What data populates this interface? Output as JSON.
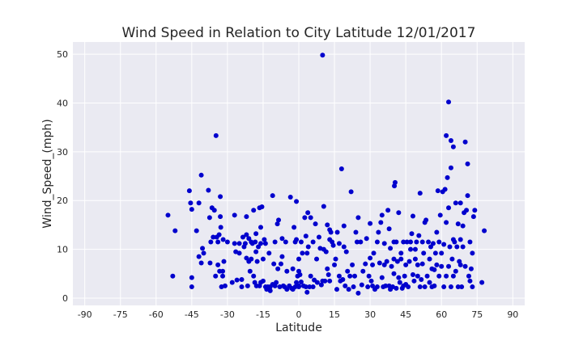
{
  "chart_data": {
    "type": "scatter",
    "title": "Wind Speed in Relation to City Latitude 12/01/2017",
    "xlabel": "Latitude",
    "ylabel": "Wind_Speed_(mph)",
    "xlim": [
      -95,
      95
    ],
    "ylim": [
      -1.5,
      52.5
    ],
    "xticks": [
      -90,
      -75,
      -60,
      -45,
      -30,
      -15,
      0,
      15,
      30,
      45,
      60,
      75,
      90
    ],
    "yticks": [
      0,
      10,
      20,
      30,
      40,
      50
    ],
    "grid": true,
    "point_color": "#0000cd",
    "plot_background": "#eaeaf2",
    "points": [
      [
        -55,
        17
      ],
      [
        -53,
        4.5
      ],
      [
        -52,
        13.8
      ],
      [
        -46,
        22
      ],
      [
        -45.5,
        19.5
      ],
      [
        -45,
        18.2
      ],
      [
        -45,
        4.2
      ],
      [
        -45,
        2.3
      ],
      [
        -43,
        13.8
      ],
      [
        -42,
        19.5
      ],
      [
        -42,
        8.5
      ],
      [
        -41,
        25.2
      ],
      [
        -41,
        7.2
      ],
      [
        -40.5,
        10.2
      ],
      [
        -40,
        9.2
      ],
      [
        -38,
        22.1
      ],
      [
        -37.5,
        16.5
      ],
      [
        -37.3,
        7.2
      ],
      [
        -37,
        11.5
      ],
      [
        -36.5,
        18.5
      ],
      [
        -36,
        12.5
      ],
      [
        -35.5,
        18
      ],
      [
        -35,
        4.5
      ],
      [
        -34.8,
        33.3
      ],
      [
        -34.5,
        12.5
      ],
      [
        -34,
        11.5
      ],
      [
        -34,
        6.8
      ],
      [
        -33.5,
        13
      ],
      [
        -33.3,
        5.5
      ],
      [
        -33,
        20.8
      ],
      [
        -33,
        16.7
      ],
      [
        -32.8,
        14.5
      ],
      [
        -32.5,
        2.3
      ],
      [
        -32,
        5.5
      ],
      [
        -32,
        4.5
      ],
      [
        -31.8,
        12
      ],
      [
        -31.5,
        7.5
      ],
      [
        -31,
        2.5
      ],
      [
        -30,
        11.5
      ],
      [
        -28,
        3.2
      ],
      [
        -27,
        17
      ],
      [
        -27,
        11.2
      ],
      [
        -26.5,
        9.5
      ],
      [
        -26,
        3.7
      ],
      [
        -25,
        11.2
      ],
      [
        -25,
        9.2
      ],
      [
        -24,
        2.3
      ],
      [
        -24,
        3.8
      ],
      [
        -23.5,
        12.5
      ],
      [
        -23,
        10.5
      ],
      [
        -22.5,
        11.2
      ],
      [
        -22,
        16.7
      ],
      [
        -22,
        13
      ],
      [
        -22,
        8.2
      ],
      [
        -21.5,
        2.5
      ],
      [
        -21,
        7.5
      ],
      [
        -21,
        12.2
      ],
      [
        -20.5,
        5.5
      ],
      [
        -20,
        8
      ],
      [
        -20,
        11.5
      ],
      [
        -19.5,
        11.2
      ],
      [
        -19,
        4.5
      ],
      [
        -19,
        18
      ],
      [
        -18.5,
        3.2
      ],
      [
        -18.3,
        11.5
      ],
      [
        -18,
        13.2
      ],
      [
        -18,
        9.5
      ],
      [
        -17.8,
        2.5
      ],
      [
        -17.5,
        7.5
      ],
      [
        -17,
        10.5
      ],
      [
        -16.5,
        18.5
      ],
      [
        -16.5,
        2.5
      ],
      [
        -16,
        11.2
      ],
      [
        -16,
        3.2
      ],
      [
        -16,
        14.5
      ],
      [
        -15.5,
        18.7
      ],
      [
        -15,
        8
      ],
      [
        -15,
        3.5
      ],
      [
        -14.5,
        12
      ],
      [
        -14,
        11.2
      ],
      [
        -14,
        2.3
      ],
      [
        -13.5,
        1.8
      ],
      [
        -13,
        2.3
      ],
      [
        -12.5,
        9.2
      ],
      [
        -12,
        1.5
      ],
      [
        -12,
        2.3
      ],
      [
        -11,
        21
      ],
      [
        -11,
        2.8
      ],
      [
        -10.5,
        7
      ],
      [
        -10,
        11.5
      ],
      [
        -10,
        2.5
      ],
      [
        -9.5,
        3.2
      ],
      [
        -9,
        15.2
      ],
      [
        -8.8,
        6
      ],
      [
        -8.5,
        16
      ],
      [
        -8,
        2.3
      ],
      [
        -7.5,
        7
      ],
      [
        -7,
        8.5
      ],
      [
        -7,
        12.2
      ],
      [
        -6.5,
        2.5
      ],
      [
        -6,
        2.3
      ],
      [
        -5.5,
        11.5
      ],
      [
        -5,
        1.8
      ],
      [
        -5,
        5.5
      ],
      [
        -4,
        2.5
      ],
      [
        -3.5,
        20.7
      ],
      [
        -3,
        2
      ],
      [
        -2.5,
        6
      ],
      [
        -2.5,
        1.8
      ],
      [
        -2,
        14.5
      ],
      [
        -1.5,
        11.5
      ],
      [
        -1.5,
        2.3
      ],
      [
        -1,
        3.2
      ],
      [
        -1,
        19.8
      ],
      [
        -1,
        12
      ],
      [
        -0.5,
        4.5
      ],
      [
        0,
        8
      ],
      [
        0,
        2.5
      ],
      [
        0,
        2.3
      ],
      [
        0,
        5.5
      ],
      [
        0.5,
        4.8
      ],
      [
        1,
        3.3
      ],
      [
        1,
        11.5
      ],
      [
        1.5,
        9.2
      ],
      [
        2,
        2.5
      ],
      [
        2.5,
        16.5
      ],
      [
        3,
        12.7
      ],
      [
        3,
        2.3
      ],
      [
        3.5,
        9.2
      ],
      [
        3.5,
        1.2
      ],
      [
        3.8,
        17.5
      ],
      [
        4,
        10.5
      ],
      [
        4.5,
        2.3
      ],
      [
        5,
        16.5
      ],
      [
        5,
        4.5
      ],
      [
        6,
        11.5
      ],
      [
        6,
        2.3
      ],
      [
        6.5,
        3.7
      ],
      [
        7,
        15.2
      ],
      [
        7.5,
        8
      ],
      [
        7.8,
        3.2
      ],
      [
        8.5,
        12.5
      ],
      [
        9,
        10.2
      ],
      [
        9.5,
        2.7
      ],
      [
        10,
        49.8
      ],
      [
        10,
        3.5
      ],
      [
        10.5,
        18.8
      ],
      [
        10.5,
        10
      ],
      [
        11,
        3.5
      ],
      [
        11.5,
        9.5
      ],
      [
        12,
        15
      ],
      [
        12,
        6
      ],
      [
        12.5,
        4.8
      ],
      [
        13,
        14
      ],
      [
        13,
        12
      ],
      [
        13,
        3.5
      ],
      [
        13.5,
        13.5
      ],
      [
        14,
        11.5
      ],
      [
        14.5,
        10.8
      ],
      [
        15,
        6.8
      ],
      [
        15.5,
        8
      ],
      [
        16,
        1.8
      ],
      [
        16.2,
        13.5
      ],
      [
        17,
        4.5
      ],
      [
        17,
        11.2
      ],
      [
        17.5,
        3.5
      ],
      [
        18,
        26.5
      ],
      [
        18.5,
        3.8
      ],
      [
        19,
        10.5
      ],
      [
        19,
        14.8
      ],
      [
        19.5,
        2.5
      ],
      [
        20,
        9.5
      ],
      [
        20.5,
        5.5
      ],
      [
        21,
        1.8
      ],
      [
        21.5,
        4.5
      ],
      [
        22,
        21.8
      ],
      [
        22.5,
        6.8
      ],
      [
        23,
        2.3
      ],
      [
        23.5,
        4.5
      ],
      [
        24,
        13.5
      ],
      [
        24.5,
        11.5
      ],
      [
        25,
        16.5
      ],
      [
        25,
        1
      ],
      [
        26,
        11.5
      ],
      [
        26.5,
        2.7
      ],
      [
        27,
        5.5
      ],
      [
        28,
        7
      ],
      [
        28.5,
        12.2
      ],
      [
        29,
        2.3
      ],
      [
        29.5,
        4.5
      ],
      [
        30,
        15.3
      ],
      [
        30,
        8.2
      ],
      [
        30.5,
        3.5
      ],
      [
        31,
        6.8
      ],
      [
        31,
        2.5
      ],
      [
        31.5,
        9.2
      ],
      [
        32,
        1.8
      ],
      [
        33,
        2.3
      ],
      [
        33,
        11.5
      ],
      [
        33.5,
        13.5
      ],
      [
        34,
        7.2
      ],
      [
        34.5,
        15.5
      ],
      [
        35,
        4.2
      ],
      [
        35,
        17
      ],
      [
        35.5,
        2.3
      ],
      [
        36,
        6.8
      ],
      [
        36,
        11.2
      ],
      [
        36.5,
        2.5
      ],
      [
        37,
        7.5
      ],
      [
        37.5,
        18
      ],
      [
        38,
        14.2
      ],
      [
        38,
        2.5
      ],
      [
        38.5,
        10.2
      ],
      [
        38.5,
        1.8
      ],
      [
        39,
        6.5
      ],
      [
        39.5,
        2.3
      ],
      [
        40,
        11.5
      ],
      [
        40,
        8
      ],
      [
        40,
        5
      ],
      [
        40.2,
        23
      ],
      [
        40.5,
        23.7
      ],
      [
        41,
        11.5
      ],
      [
        41,
        2
      ],
      [
        41.5,
        7.5
      ],
      [
        42,
        4.2
      ],
      [
        42,
        17.5
      ],
      [
        42.5,
        3.2
      ],
      [
        43,
        8
      ],
      [
        43,
        9.2
      ],
      [
        43.5,
        2
      ],
      [
        44,
        11.5
      ],
      [
        44,
        2.5
      ],
      [
        44.5,
        4.5
      ],
      [
        45,
        6.8
      ],
      [
        45,
        2.8
      ],
      [
        45.5,
        11.5
      ],
      [
        46,
        2.3
      ],
      [
        46.5,
        7.5
      ],
      [
        47,
        11.5
      ],
      [
        47,
        10
      ],
      [
        47.5,
        13.2
      ],
      [
        48,
        4.8
      ],
      [
        48,
        16.8
      ],
      [
        48.5,
        3.5
      ],
      [
        49,
        8
      ],
      [
        49,
        10
      ],
      [
        49.5,
        11.5
      ],
      [
        50,
        6.8
      ],
      [
        50,
        4.5
      ],
      [
        50.5,
        12.8
      ],
      [
        51,
        21.5
      ],
      [
        51,
        2.3
      ],
      [
        51.5,
        3.8
      ],
      [
        52,
        11.5
      ],
      [
        52,
        7
      ],
      [
        52.5,
        9.2
      ],
      [
        53,
        2.3
      ],
      [
        53,
        15.5
      ],
      [
        53.5,
        16
      ],
      [
        54,
        4.5
      ],
      [
        54.5,
        11.5
      ],
      [
        55,
        3.2
      ],
      [
        55,
        8
      ],
      [
        55.5,
        10.5
      ],
      [
        56,
        2.3
      ],
      [
        56,
        6
      ],
      [
        56.5,
        11.2
      ],
      [
        57,
        5.8
      ],
      [
        57,
        2.5
      ],
      [
        57.5,
        9.2
      ],
      [
        58,
        13.5
      ],
      [
        58,
        6.8
      ],
      [
        58.5,
        22
      ],
      [
        59,
        11.5
      ],
      [
        59,
        4.5
      ],
      [
        59.5,
        17
      ],
      [
        60,
        6.5
      ],
      [
        60,
        9.2
      ],
      [
        60.5,
        21.8
      ],
      [
        61,
        11
      ],
      [
        61,
        2.3
      ],
      [
        61.5,
        22.3
      ],
      [
        62,
        33.3
      ],
      [
        62,
        15.5
      ],
      [
        62,
        4.5
      ],
      [
        62.5,
        24.7
      ],
      [
        63,
        40.2
      ],
      [
        63,
        18.5
      ],
      [
        63,
        6.5
      ],
      [
        63.5,
        10.5
      ],
      [
        64,
        32.3
      ],
      [
        64,
        2.3
      ],
      [
        64,
        26.7
      ],
      [
        64.5,
        8
      ],
      [
        65,
        31
      ],
      [
        65,
        12
      ],
      [
        65,
        4.5
      ],
      [
        65.5,
        11.5
      ],
      [
        66,
        19.5
      ],
      [
        66,
        5.5
      ],
      [
        66.5,
        10.5
      ],
      [
        67,
        2.3
      ],
      [
        67,
        15.2
      ],
      [
        67.5,
        7.5
      ],
      [
        68,
        6.8
      ],
      [
        68,
        12
      ],
      [
        68,
        19.5
      ],
      [
        68.5,
        2.3
      ],
      [
        69,
        14.8
      ],
      [
        69,
        10.5
      ],
      [
        69.5,
        17.5
      ],
      [
        70,
        6.5
      ],
      [
        70,
        32
      ],
      [
        70.5,
        18
      ],
      [
        71,
        21
      ],
      [
        71,
        27.5
      ],
      [
        71.5,
        4.5
      ],
      [
        72,
        11.5
      ],
      [
        72,
        3.5
      ],
      [
        72.5,
        6
      ],
      [
        73,
        2.3
      ],
      [
        73,
        9.2
      ],
      [
        73.5,
        16.7
      ],
      [
        74,
        18
      ],
      [
        77,
        3.2
      ],
      [
        78,
        13.8
      ]
    ]
  }
}
